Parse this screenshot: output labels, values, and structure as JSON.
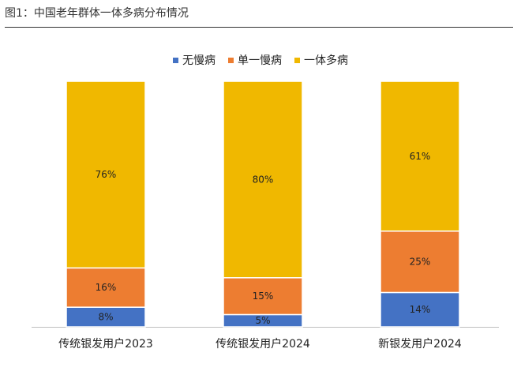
{
  "figure": {
    "title": "图1：中国老年群体一体多病分布情况"
  },
  "chart_data": {
    "type": "bar",
    "stacked": true,
    "percent_stacked": true,
    "title": "",
    "xlabel": "",
    "ylabel": "",
    "ylim": [
      0,
      100
    ],
    "grid": false,
    "legend_position": "top",
    "categories": [
      "传统银发用户2023",
      "传统银发用户2024",
      "新银发用户2024"
    ],
    "series": [
      {
        "name": "无慢病",
        "color": "#4472C4",
        "values": [
          8,
          5,
          14
        ],
        "labels": [
          "8%",
          "5%",
          "14%"
        ]
      },
      {
        "name": "单一慢病",
        "color": "#ED7D31",
        "values": [
          16,
          15,
          25
        ],
        "labels": [
          "16%",
          "15%",
          "25%"
        ]
      },
      {
        "name": "一体多病",
        "color": "#F0B800",
        "values": [
          76,
          80,
          61
        ],
        "labels": [
          "76%",
          "80%",
          "61%"
        ]
      }
    ]
  }
}
